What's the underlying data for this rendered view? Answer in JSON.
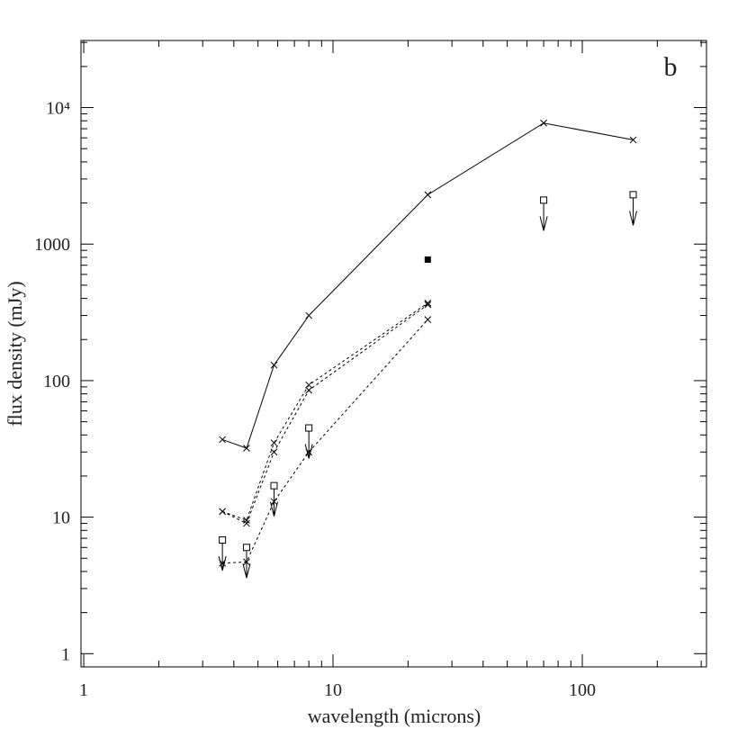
{
  "chart_data": {
    "type": "line",
    "xlabel": "wavelength (microns)",
    "ylabel": "flux density (mJy)",
    "annotation": "b",
    "log_x": true,
    "log_y": true,
    "xlim": [
      0.975,
      315
    ],
    "ylim": [
      0.8,
      31000
    ],
    "xticks": [
      1,
      10,
      100
    ],
    "yticks": [
      1,
      10,
      100,
      1000,
      {
        "value": 10000,
        "label": "10⁴"
      }
    ],
    "xminorticks": [
      2,
      3,
      4,
      5,
      6,
      7,
      8,
      9,
      20,
      30,
      40,
      50,
      60,
      70,
      80,
      90,
      200,
      300
    ],
    "yminorticks": [
      2,
      3,
      4,
      5,
      6,
      7,
      8,
      9,
      20,
      30,
      40,
      50,
      60,
      70,
      80,
      90,
      200,
      300,
      400,
      500,
      600,
      700,
      800,
      900,
      2000,
      3000,
      4000,
      5000,
      6000,
      7000,
      8000,
      9000,
      20000,
      30000
    ],
    "color": "#000000",
    "series": [
      {
        "x": [
          3.6,
          4.5,
          5.8,
          8,
          24,
          70,
          160
        ],
        "values": [
          37,
          32,
          130,
          300,
          2300,
          7700,
          5800
        ],
        "line": "solid",
        "marker": "x"
      },
      {
        "x": [
          3.6,
          4.5,
          5.8,
          8,
          24
        ],
        "values": [
          11,
          9.5,
          35,
          93,
          370
        ],
        "line": "dotted",
        "marker": "x"
      },
      {
        "x": [
          3.6,
          4.5,
          5.8,
          8,
          24
        ],
        "values": [
          11,
          9,
          30,
          85,
          360
        ],
        "line": "dotted",
        "marker": "x"
      },
      {
        "x": [
          3.6,
          4.5,
          5.8,
          8,
          24
        ],
        "values": [
          4.6,
          4.7,
          13,
          30,
          280
        ],
        "line": "dotted",
        "marker": "x"
      }
    ],
    "upper_limits": {
      "x": [
        3.6,
        4.5,
        5.8,
        8,
        70,
        160
      ],
      "values": [
        6.8,
        6,
        17,
        45,
        2100,
        2300
      ]
    },
    "detections": {
      "x": [
        24
      ],
      "values": [
        770
      ]
    }
  }
}
